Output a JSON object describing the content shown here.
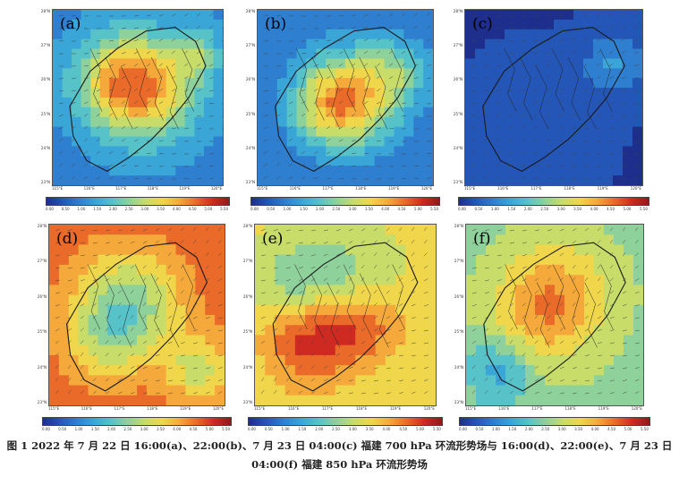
{
  "chart_data": [
    {
      "type": "heatmap",
      "panel": "(a)",
      "level_hpa": 700,
      "time": "16:00",
      "x_ticks": [
        "115°E",
        "116°E",
        "117°E",
        "118°E",
        "119°E",
        "120°E"
      ],
      "y_ticks": [
        "28°N",
        "27°N",
        "26°N",
        "25°N",
        "24°N",
        "23°N"
      ],
      "colorbar_ticks": [
        "0.00",
        "0.50",
        "1.00",
        "1.50",
        "2.00",
        "2.50",
        "3.00",
        "3.50",
        "4.00",
        "4.50",
        "5.00",
        "5.50"
      ],
      "colorbar_title": "",
      "xlabel": "",
      "ylabel": ""
    },
    {
      "type": "heatmap",
      "panel": "(b)",
      "level_hpa": 700,
      "time": "22:00",
      "x_ticks": [
        "115°E",
        "116°E",
        "117°E",
        "118°E",
        "119°E",
        "120°E"
      ],
      "y_ticks": [
        "28°N",
        "27°N",
        "26°N",
        "25°N",
        "24°N",
        "23°N"
      ],
      "colorbar_ticks": [
        "0.00",
        "0.50",
        "1.00",
        "1.50",
        "2.00",
        "2.50",
        "3.00",
        "3.50",
        "4.00",
        "4.50",
        "5.00",
        "5.50"
      ],
      "colorbar_title": "",
      "xlabel": "",
      "ylabel": ""
    },
    {
      "type": "heatmap",
      "panel": "(c)",
      "level_hpa": 700,
      "time": "04:00",
      "x_ticks": [
        "115°E",
        "116°E",
        "117°E",
        "118°E",
        "119°E",
        "120°E"
      ],
      "y_ticks": [
        "28°N",
        "27°N",
        "26°N",
        "25°N",
        "24°N",
        "23°N"
      ],
      "colorbar_ticks": [
        "0.00",
        "0.50",
        "1.00",
        "1.50",
        "2.00",
        "2.50",
        "3.00",
        "3.50",
        "4.00",
        "4.50",
        "5.00",
        "5.50"
      ],
      "colorbar_title": "",
      "xlabel": "",
      "ylabel": ""
    },
    {
      "type": "heatmap",
      "panel": "(d)",
      "level_hpa": 850,
      "time": "16:00",
      "x_ticks": [
        "115°E",
        "116°E",
        "117°E",
        "118°E",
        "119°E",
        "120°E"
      ],
      "y_ticks": [
        "28°N",
        "27°N",
        "26°N",
        "25°N",
        "24°N",
        "23°N"
      ],
      "colorbar_ticks": [
        "0.00",
        "0.50",
        "1.00",
        "1.50",
        "2.00",
        "2.50",
        "3.00",
        "3.50",
        "4.00",
        "4.50",
        "5.00",
        "5.50"
      ],
      "colorbar_title": "",
      "xlabel": "",
      "ylabel": ""
    },
    {
      "type": "heatmap",
      "panel": "(e)",
      "level_hpa": 850,
      "time": "22:00",
      "x_ticks": [
        "115°E",
        "116°E",
        "117°E",
        "118°E",
        "119°E",
        "120°E"
      ],
      "y_ticks": [
        "28°N",
        "27°N",
        "26°N",
        "25°N",
        "24°N",
        "23°N"
      ],
      "colorbar_ticks": [
        "0.00",
        "0.50",
        "1.00",
        "1.50",
        "2.00",
        "2.50",
        "3.00",
        "3.50",
        "4.00",
        "4.50",
        "5.00",
        "5.50"
      ],
      "colorbar_title": "",
      "xlabel": "",
      "ylabel": ""
    },
    {
      "type": "heatmap",
      "panel": "(f)",
      "level_hpa": 850,
      "time": "04:00",
      "x_ticks": [
        "115°E",
        "116°E",
        "117°E",
        "118°E",
        "119°E",
        "120°E"
      ],
      "y_ticks": [
        "28°N",
        "27°N",
        "26°N",
        "25°N",
        "24°N",
        "23°N"
      ],
      "colorbar_ticks": [
        "0.00",
        "0.50",
        "1.00",
        "1.50",
        "2.00",
        "2.50",
        "3.00",
        "3.50",
        "4.00",
        "4.50",
        "5.00",
        "5.50"
      ],
      "colorbar_title": "",
      "xlabel": "",
      "ylabel": ""
    }
  ],
  "panels": [
    {
      "label": "(a)"
    },
    {
      "label": "(b)"
    },
    {
      "label": "(c)"
    },
    {
      "label": "(d)"
    },
    {
      "label": "(e)"
    },
    {
      "label": "(f)"
    }
  ],
  "caption": {
    "line1": "图 1  2022 年 7 月 22 日 16:00(a)、22:00(b)、7 月 23 日 04:00(c) 福建 700 hPa 环流形势场与 16:00(d)、22:00(e)、7 月 23 日",
    "line2": "04:00(f) 福建 850 hPa 环流形势场"
  },
  "colors": {
    "colormap": [
      "#1d2e8c",
      "#2456b8",
      "#2f7fd0",
      "#3aa6d8",
      "#57c3c8",
      "#8fd19a",
      "#c8dc6a",
      "#f0d64a",
      "#f4a93a",
      "#ea6a2a",
      "#cf2a22",
      "#8e1a1a"
    ]
  }
}
